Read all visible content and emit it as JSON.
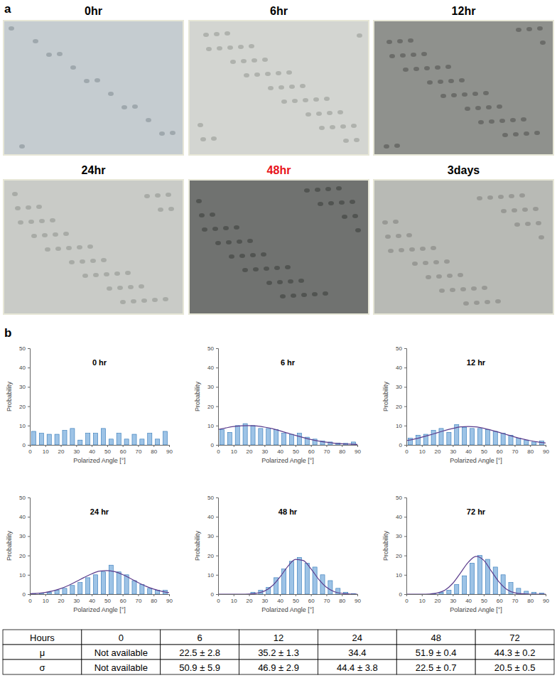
{
  "panel_labels": [
    "a",
    "b"
  ],
  "images": [
    {
      "title": "0hr"
    },
    {
      "title": "6hr"
    },
    {
      "title": "12hr"
    },
    {
      "title": "24hr"
    },
    {
      "title": "48hr",
      "color": "#e8141b"
    },
    {
      "title": "3days"
    }
  ],
  "chart_data": [
    {
      "type": "histogram",
      "title": "0 hr",
      "x_label": "Polarized Angle [°]",
      "y_label": "Probability",
      "bins": [
        0,
        5,
        10,
        15,
        20,
        25,
        30,
        35,
        40,
        45,
        50,
        55,
        60,
        65,
        70,
        75,
        80,
        85,
        90
      ],
      "values": [
        7,
        6,
        5.5,
        5.5,
        7.5,
        8.5,
        2.5,
        6,
        6,
        8.5,
        3,
        6,
        3,
        5.5,
        3,
        6,
        3,
        7
      ],
      "color": "#9dc3e6",
      "xlim": [
        0,
        90
      ],
      "xticks": [
        0,
        10,
        20,
        30,
        40,
        50,
        60,
        70,
        80,
        90
      ],
      "ylim": [
        0,
        50
      ],
      "yticks": [
        0,
        10,
        20,
        30,
        40,
        50
      ]
    },
    {
      "type": "histogram",
      "title": "6 hr",
      "x_label": "Polarized Angle [°]",
      "y_label": "Probability",
      "bins": [
        0,
        5,
        10,
        15,
        20,
        25,
        30,
        35,
        40,
        45,
        50,
        55,
        60,
        65,
        70,
        75,
        80,
        85,
        90
      ],
      "values": [
        8,
        6.5,
        10,
        11,
        10,
        8.5,
        8.5,
        8,
        6,
        5.5,
        6,
        4,
        3,
        2,
        1.5,
        1,
        0.8,
        1.5
      ],
      "color": "#9dc3e6",
      "xlim": [
        0,
        90
      ],
      "xticks": [
        0,
        10,
        20,
        30,
        40,
        50,
        60,
        70,
        80,
        90
      ],
      "ylim": [
        0,
        50
      ],
      "yticks": [
        0,
        10,
        20,
        30,
        40,
        50
      ],
      "fit": {
        "type": "line",
        "color": "#5b3c8c",
        "x": [
          0,
          5,
          10,
          15,
          20,
          25,
          30,
          35,
          40,
          45,
          50,
          55,
          60,
          65,
          70,
          75,
          80,
          85,
          90
        ],
        "values": [
          8.0,
          8.8,
          9.5,
          9.9,
          10,
          9.8,
          9.2,
          8.4,
          7.3,
          6.1,
          4.9,
          3.8,
          2.8,
          2.0,
          1.4,
          0.9,
          0.6,
          0.4,
          0.2
        ]
      }
    },
    {
      "type": "histogram",
      "title": "12 hr",
      "x_label": "Polarized Angle [°]",
      "y_label": "Probability",
      "bins": [
        0,
        5,
        10,
        15,
        20,
        25,
        30,
        35,
        40,
        45,
        50,
        55,
        60,
        65,
        70,
        75,
        80,
        85,
        90
      ],
      "values": [
        3.5,
        5,
        5.5,
        7.5,
        8.5,
        6.5,
        10.5,
        9,
        8.5,
        8.5,
        8,
        7,
        6,
        5,
        3.5,
        2.5,
        1.5,
        2
      ],
      "color": "#9dc3e6",
      "xlim": [
        0,
        90
      ],
      "xticks": [
        0,
        10,
        20,
        30,
        40,
        50,
        60,
        70,
        80,
        90
      ],
      "ylim": [
        0,
        50
      ],
      "yticks": [
        0,
        10,
        20,
        30,
        40,
        50
      ],
      "fit": {
        "type": "line",
        "color": "#5b3c8c",
        "x": [
          0,
          5,
          10,
          15,
          20,
          25,
          30,
          35,
          40,
          45,
          50,
          55,
          60,
          65,
          70,
          75,
          80,
          85,
          90
        ],
        "values": [
          2.2,
          3.0,
          4.0,
          5.1,
          6.3,
          7.5,
          8.5,
          9.3,
          9.5,
          9.3,
          8.6,
          7.6,
          6.5,
          5.3,
          4.1,
          3.1,
          2.2,
          1.5,
          1.0
        ]
      }
    },
    {
      "type": "histogram",
      "title": "24 hr",
      "x_label": "Polarized Angle [°]",
      "y_label": "Probability",
      "bins": [
        0,
        5,
        10,
        15,
        20,
        25,
        30,
        35,
        40,
        45,
        50,
        55,
        60,
        65,
        70,
        75,
        80,
        85,
        90
      ],
      "values": [
        0.3,
        0.5,
        1,
        2,
        3,
        4.5,
        6,
        8.5,
        10,
        11.5,
        15,
        11.5,
        10,
        7,
        5,
        3,
        2,
        2
      ],
      "color": "#9dc3e6",
      "xlim": [
        0,
        90
      ],
      "xticks": [
        0,
        10,
        20,
        30,
        40,
        50,
        60,
        70,
        80,
        90
      ],
      "ylim": [
        0,
        50
      ],
      "yticks": [
        0,
        10,
        20,
        30,
        40,
        50
      ],
      "fit": {
        "type": "line",
        "color": "#5b3c8c",
        "x": [
          0,
          5,
          10,
          15,
          20,
          25,
          30,
          35,
          40,
          45,
          50,
          55,
          60,
          65,
          70,
          75,
          80,
          85,
          90
        ],
        "values": [
          0.2,
          0.4,
          0.9,
          1.7,
          2.9,
          4.5,
          6.5,
          8.6,
          10.5,
          11.9,
          12.2,
          11.6,
          10.1,
          8.1,
          6.0,
          4.1,
          2.6,
          1.5,
          0.8
        ]
      }
    },
    {
      "type": "histogram",
      "title": "48 hr",
      "x_label": "Polarized Angle [°]",
      "y_label": "Probability",
      "bins": [
        0,
        5,
        10,
        15,
        20,
        25,
        30,
        35,
        40,
        45,
        50,
        55,
        60,
        65,
        70,
        75,
        80,
        85,
        90
      ],
      "values": [
        0,
        0,
        0,
        0,
        1,
        2,
        3.5,
        8.5,
        13,
        17,
        19,
        16,
        14,
        10,
        7,
        3,
        1,
        0.3
      ],
      "color": "#9dc3e6",
      "xlim": [
        0,
        90
      ],
      "xticks": [
        0,
        10,
        20,
        30,
        40,
        50,
        60,
        70,
        80,
        90
      ],
      "ylim": [
        0,
        50
      ],
      "yticks": [
        0,
        10,
        20,
        30,
        40,
        50
      ],
      "fit": {
        "type": "line",
        "color": "#5b3c8c",
        "x": [
          0,
          5,
          10,
          15,
          20,
          25,
          30,
          35,
          40,
          45,
          50,
          55,
          60,
          65,
          70,
          75,
          80,
          85,
          90
        ],
        "values": [
          0,
          0,
          0,
          0,
          0.1,
          0.5,
          1.6,
          4.3,
          8.9,
          14.3,
          18.0,
          17.4,
          13.1,
          7.7,
          3.6,
          1.3,
          0.4,
          0.1,
          0
        ]
      }
    },
    {
      "type": "histogram",
      "title": "72 hr",
      "x_label": "Polarized Angle [°]",
      "y_label": "Probability",
      "bins": [
        0,
        5,
        10,
        15,
        20,
        25,
        30,
        35,
        40,
        45,
        50,
        55,
        60,
        65,
        70,
        75,
        80,
        85,
        90
      ],
      "values": [
        0,
        0,
        0,
        0.3,
        1,
        2,
        5,
        9.5,
        16,
        20,
        18,
        14,
        10,
        6,
        3,
        1.5,
        1,
        0.5
      ],
      "color": "#9dc3e6",
      "xlim": [
        0,
        90
      ],
      "xticks": [
        0,
        10,
        20,
        30,
        40,
        50,
        60,
        70,
        80,
        90
      ],
      "ylim": [
        0,
        50
      ],
      "yticks": [
        0,
        10,
        20,
        30,
        40,
        50
      ],
      "fit": {
        "type": "line",
        "color": "#5b3c8c",
        "x": [
          0,
          5,
          10,
          15,
          20,
          25,
          30,
          35,
          40,
          45,
          50,
          55,
          60,
          65,
          70,
          75,
          80,
          85,
          90
        ],
        "values": [
          0,
          0,
          0,
          0.1,
          0.6,
          2.1,
          5.6,
          11.0,
          16.5,
          19.5,
          17.5,
          11.8,
          6.2,
          2.4,
          0.7,
          0.2,
          0,
          0,
          0
        ]
      }
    }
  ],
  "table": {
    "rows": [
      [
        "Hours",
        "0",
        "6",
        "12",
        "24",
        "48",
        "72"
      ],
      [
        "μ",
        "Not available",
        "22.5 ± 2.8",
        "35.2 ± 1.3",
        "34.4",
        "51.9 ± 0.4",
        "44.3 ± 0.2"
      ],
      [
        "σ",
        "Not available",
        "50.9 ± 5.9",
        "46.9 ± 2.9",
        "44.4 ± 3.8",
        "22.5 ± 0.7",
        "20.5 ± 0.5"
      ]
    ]
  }
}
